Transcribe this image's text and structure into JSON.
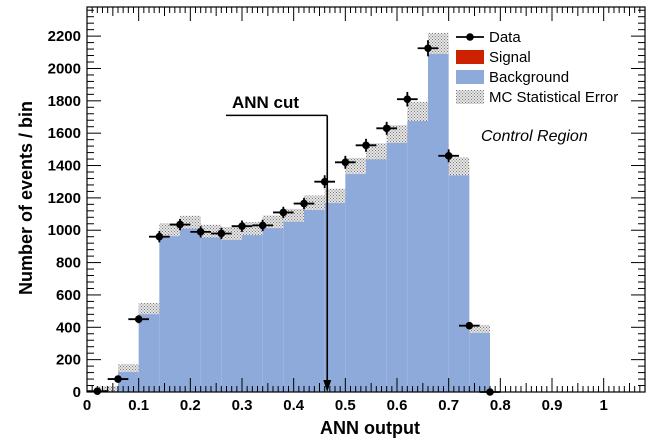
{
  "chart_data": {
    "type": "bar",
    "xlabel": "ANN output",
    "ylabel": "Number of events / bin",
    "xlim": [
      0,
      1.08
    ],
    "ylim": [
      0,
      2380
    ],
    "bin_width": 0.04,
    "x_ticks": [
      0,
      0.1,
      0.2,
      0.3,
      0.4,
      0.5,
      0.6,
      0.7,
      0.8,
      0.9,
      1
    ],
    "x_tick_labels": [
      "0",
      "0.1",
      "0.2",
      "0.3",
      "0.4",
      "0.5",
      "0.6",
      "0.7",
      "0.8",
      "0.9",
      "1"
    ],
    "y_ticks": [
      0,
      200,
      400,
      600,
      800,
      1000,
      1200,
      1400,
      1600,
      1800,
      2000,
      2200
    ],
    "y_tick_labels": [
      "0",
      "200",
      "400",
      "600",
      "800",
      "1000",
      "1200",
      "1400",
      "1600",
      "1800",
      "2000",
      "2200"
    ],
    "bin_edges": [
      0.02,
      0.06,
      0.1,
      0.14,
      0.18,
      0.22,
      0.26,
      0.3,
      0.34,
      0.38,
      0.42,
      0.46,
      0.5,
      0.54,
      0.58,
      0.62,
      0.66,
      0.7,
      0.74
    ],
    "background": [
      20,
      145,
      510,
      995,
      1040,
      985,
      970,
      1000,
      1040,
      1080,
      1155,
      1195,
      1375,
      1460,
      1565,
      1700,
      2115,
      1365,
      375
    ],
    "signal": [
      1,
      3,
      5,
      8,
      10,
      10,
      10,
      10,
      12,
      12,
      15,
      18,
      22,
      28,
      30,
      35,
      40,
      30,
      15
    ],
    "mc_error": [
      15,
      25,
      35,
      40,
      40,
      40,
      40,
      40,
      40,
      40,
      45,
      45,
      50,
      50,
      55,
      60,
      65,
      55,
      25
    ],
    "data_points": {
      "x": [
        0.02,
        0.06,
        0.1,
        0.14,
        0.18,
        0.22,
        0.26,
        0.3,
        0.34,
        0.38,
        0.42,
        0.46,
        0.5,
        0.54,
        0.58,
        0.62,
        0.66,
        0.7,
        0.74,
        0.78
      ],
      "y": [
        5,
        80,
        450,
        960,
        1035,
        990,
        980,
        1025,
        1030,
        1110,
        1165,
        1300,
        1420,
        1525,
        1630,
        1810,
        2125,
        1460,
        410,
        0
      ],
      "yerr": [
        5,
        15,
        25,
        35,
        35,
        35,
        35,
        35,
        35,
        35,
        35,
        40,
        40,
        40,
        40,
        45,
        50,
        40,
        20,
        3
      ]
    },
    "colors": {
      "background": "#8eaadb",
      "signal": "#cc2200",
      "mc_error": "#b0b0b0",
      "data": "#000000"
    },
    "annotation": {
      "text": "ANN cut",
      "x": 0.465,
      "arrow_from_y": 1710,
      "arrow_to_y": 0
    },
    "region_label": "Control Region",
    "legend": {
      "placement": "top-right",
      "entries": [
        {
          "label": "Data",
          "style": "marker"
        },
        {
          "label": "Signal",
          "style": "fill-signal"
        },
        {
          "label": "Background",
          "style": "fill-background"
        },
        {
          "label": "MC Statistical Error",
          "style": "hatch"
        }
      ]
    },
    "grid": false
  }
}
